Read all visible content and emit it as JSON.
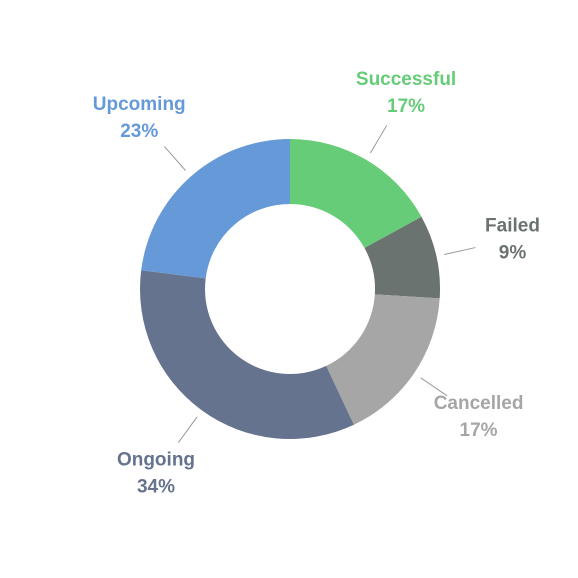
{
  "chart_data": {
    "type": "donut",
    "series": [
      {
        "name": "Successful",
        "color": "#66cc77",
        "values": [
          17
        ],
        "value_labels": [
          "17%"
        ]
      },
      {
        "name": "Failed",
        "color": "#6b7370",
        "values": [
          9
        ],
        "value_labels": [
          "9%"
        ]
      },
      {
        "name": "Cancelled",
        "color": "#a6a6a6",
        "values": [
          17
        ],
        "value_labels": [
          "17%"
        ]
      },
      {
        "name": "Ongoing",
        "color": "#66738f",
        "values": [
          34
        ],
        "value_labels": [
          "34%"
        ]
      },
      {
        "name": "Upcoming",
        "color": "#6699d8",
        "values": [
          23
        ],
        "value_labels": [
          "23%"
        ]
      }
    ]
  }
}
